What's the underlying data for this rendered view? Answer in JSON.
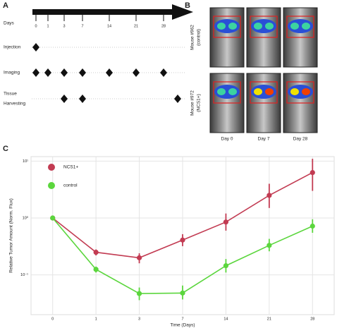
{
  "panel_labels": [
    "A",
    "B",
    "C"
  ],
  "timeline": {
    "axis_label": "Days",
    "days": [
      0,
      1,
      3,
      7,
      14,
      21,
      28
    ],
    "rows": [
      [
        "Injection"
      ],
      [
        "Imaging"
      ],
      [
        "Tissue",
        "Harvesting"
      ]
    ]
  },
  "imaging": {
    "mice": [
      [
        "Mouse #962",
        "(control)"
      ],
      [
        "Mouse #972",
        "(NCS1+)"
      ]
    ],
    "days": [
      "Day 0",
      "Day 7",
      "Day 28"
    ]
  },
  "chart_data": {
    "type": "line",
    "x_label": "Time (Days)",
    "y_label": "Relative Tumor Amount (Norm. Flux)",
    "categories": [
      "0",
      "1",
      "3",
      "7",
      "14",
      "21",
      "28"
    ],
    "series": [
      {
        "name": "NCS1+",
        "color": "#c23b52",
        "values": [
          1.0,
          0.25,
          0.2,
          0.41,
          0.85,
          2.5,
          6.3
        ],
        "lower": [
          1.0,
          0.22,
          0.16,
          0.32,
          0.6,
          1.5,
          3.0
        ],
        "upper": [
          1.0,
          0.28,
          0.24,
          0.52,
          1.2,
          4.0,
          11.0
        ]
      },
      {
        "name": "control",
        "color": "#5bd63d",
        "values": [
          1.0,
          0.125,
          0.047,
          0.048,
          0.145,
          0.33,
          0.72
        ],
        "lower": [
          1.0,
          0.11,
          0.036,
          0.037,
          0.11,
          0.26,
          0.55
        ],
        "upper": [
          1.0,
          0.14,
          0.06,
          0.065,
          0.19,
          0.43,
          0.95
        ]
      }
    ],
    "ylim": [
      0.02,
      12
    ],
    "log_scale": true,
    "grid": true,
    "legend": "upper left",
    "yticks": [
      {
        "value": 0.1,
        "label": "10⁻¹"
      },
      {
        "value": 1,
        "label": "10⁰"
      },
      {
        "value": 10,
        "label": "10¹"
      }
    ]
  }
}
